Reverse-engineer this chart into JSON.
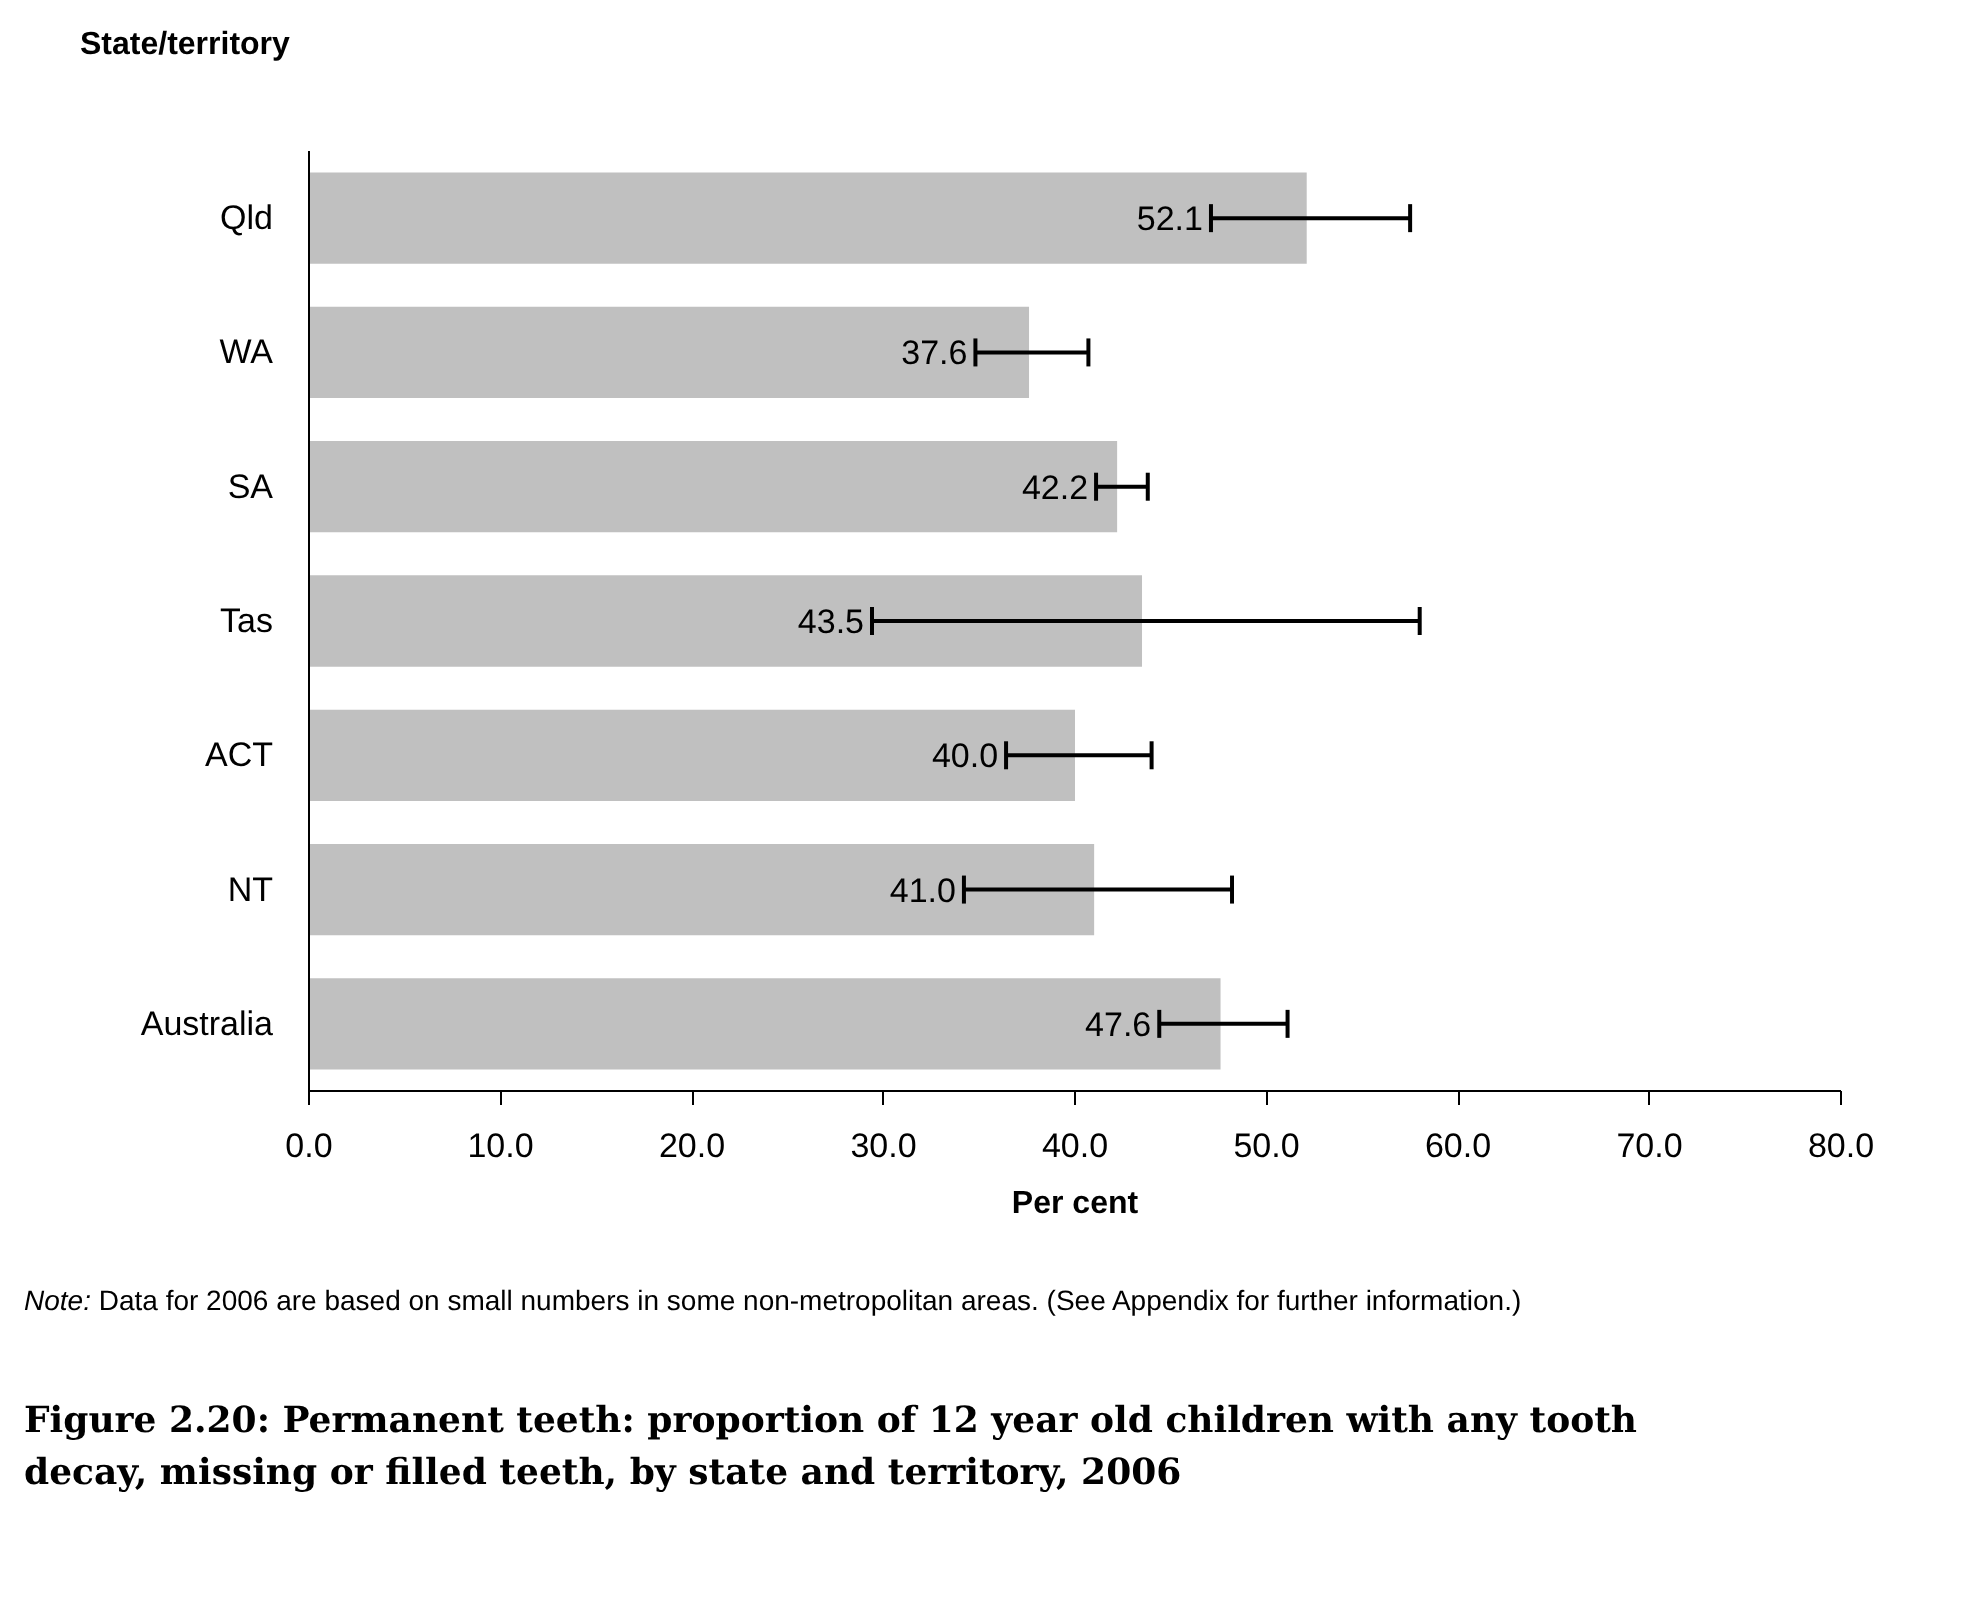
{
  "chart_data": {
    "type": "bar",
    "orientation": "horizontal",
    "title": "Figure 2.20: Permanent teeth: proportion of 12 year old children with any tooth decay, missing or filled teeth, by state and territory, 2006",
    "xlabel": "Per cent",
    "ylabel": "State/territory",
    "categories": [
      "Qld",
      "WA",
      "SA",
      "Tas",
      "ACT",
      "NT",
      "Australia"
    ],
    "values": [
      52.1,
      37.6,
      42.2,
      43.5,
      40.0,
      41.0,
      47.6
    ],
    "value_labels": [
      "52.1",
      "37.6",
      "42.2",
      "43.5",
      "40.0",
      "41.0",
      "47.6"
    ],
    "errors": [
      [
        47.1,
        57.5
      ],
      [
        34.8,
        40.7
      ],
      [
        41.1,
        43.8
      ],
      [
        29.4,
        58.0
      ],
      [
        36.4,
        44.0
      ],
      [
        34.2,
        48.2
      ],
      [
        44.4,
        51.1
      ]
    ],
    "color": "#c0c0c0",
    "xlim": [
      0,
      80
    ],
    "xticks": [
      {
        "value": 0,
        "label": "0.0"
      },
      {
        "value": 10,
        "label": "10.0"
      },
      {
        "value": 20,
        "label": "20.0"
      },
      {
        "value": 30,
        "label": "30.0"
      },
      {
        "value": 40,
        "label": "40.0"
      },
      {
        "value": 50,
        "label": "50.0"
      },
      {
        "value": 60,
        "label": "60.0"
      },
      {
        "value": 70,
        "label": "70.0"
      },
      {
        "value": 80,
        "label": "80.0"
      }
    ],
    "grid": false,
    "annotations": [
      "Note: Data for 2006 are based on small numbers in some non-metropolitan areas. (See Appendix for further information.)"
    ]
  }
}
